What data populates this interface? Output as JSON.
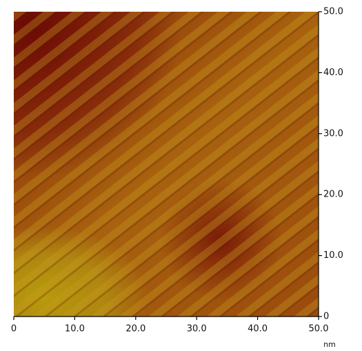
{
  "chart_data": {
    "type": "image",
    "x_unit": "nm",
    "xlim": [
      0,
      50
    ],
    "ylim": [
      0,
      50
    ],
    "xticks": [
      0,
      {
        "value": 10,
        "label": "10.0"
      },
      {
        "value": 20,
        "label": "20.0"
      },
      {
        "value": 30,
        "label": "30.0"
      },
      {
        "value": 40,
        "label": "40.0"
      },
      {
        "value": 50,
        "label": "50.0"
      }
    ],
    "yticks": [
      0,
      {
        "value": 10,
        "label": "10.0"
      },
      {
        "value": 20,
        "label": "20.0"
      },
      {
        "value": 30,
        "label": "30.0"
      },
      {
        "value": 40,
        "label": "40.0"
      },
      {
        "value": 50,
        "label": "50.0"
      }
    ]
  }
}
